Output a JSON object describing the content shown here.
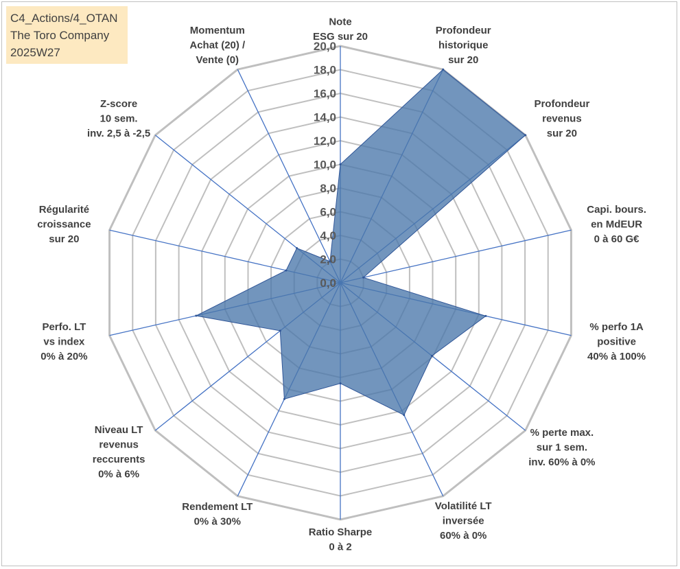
{
  "info_box": {
    "line1": "C4_Actions/4_OTAN",
    "line2": "The Toro Company",
    "line3": "2025W27"
  },
  "colors": {
    "grid": "#bfbfbf",
    "axis": "#4472c4",
    "fill": "#4a77ab",
    "tick_text": "#595959",
    "label_text": "#404040",
    "info_bg": "#fde9c1"
  },
  "chart_data": {
    "type": "radar",
    "scale": {
      "min": 0,
      "max": 20,
      "step": 2
    },
    "tick_labels": [
      "0,0",
      "2,0",
      "4,0",
      "6,0",
      "8,0",
      "10,0",
      "12,0",
      "14,0",
      "16,0",
      "18,0",
      "20,0"
    ],
    "grid": true,
    "axes": [
      {
        "label": [
          "Note",
          "ESG sur 20"
        ],
        "value": 10.0
      },
      {
        "label": [
          "Profondeur",
          "historique",
          "sur 20"
        ],
        "value": 20.0
      },
      {
        "label": [
          "Profondeur",
          "revenus",
          "sur 20"
        ],
        "value": 20.0
      },
      {
        "label": [
          "Capi. bours.",
          "en MdEUR",
          "0 à 60 G€"
        ],
        "value": 2.0
      },
      {
        "label": [
          "% perfo 1A",
          "positive",
          "40% à 100%"
        ],
        "value": 12.6
      },
      {
        "label": [
          "% perte max.",
          "sur 1 sem.",
          "inv. 60% à 0%"
        ],
        "value": 9.9
      },
      {
        "label": [
          "Volatilité LT",
          "inversée",
          "60% à 0%"
        ],
        "value": 12.4
      },
      {
        "label": [
          "Ratio Sharpe",
          "0 à 2"
        ],
        "value": 8.5
      },
      {
        "label": [
          "Rendement LT",
          "0% à 30%"
        ],
        "value": 10.9
      },
      {
        "label": [
          "Niveau LT",
          "revenus",
          "reccurents",
          "0% à 6%"
        ],
        "value": 6.5
      },
      {
        "label": [
          "Perfo. LT",
          "vs index",
          "0% à 20%"
        ],
        "value": 12.5
      },
      {
        "label": [
          "Régularité",
          "croissance",
          "sur 20"
        ],
        "value": 4.7
      },
      {
        "label": [
          "Z-score",
          "10 sem.",
          "inv. 2,5 à -2,5"
        ],
        "value": 4.7
      },
      {
        "label": [
          "Momentum",
          "Achat (20) /",
          "Vente (0)"
        ],
        "value": 2.0
      }
    ]
  }
}
